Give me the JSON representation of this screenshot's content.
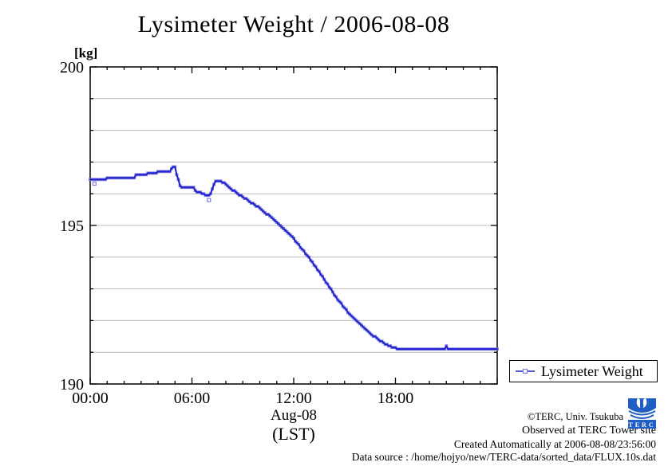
{
  "title": "Lysimeter Weight / 2006-08-08",
  "y_unit_label": "[kg]",
  "x_axis_label_line1": "Aug-08",
  "x_axis_label_line2": "(LST)",
  "legend": {
    "label": "Lysimeter Weight"
  },
  "footer": {
    "copyright": "©TERC, Univ. Tsukuba",
    "observed": "Observed at TERC Tower site",
    "created": "Created Automatically at 2006-08-08/23:56:00",
    "source": "Data source : /home/hojyo/new/TERC-data/sorted_data/FLUX.10s.dat"
  },
  "logo": {
    "text": "TERC",
    "color": "#1f5fc4"
  },
  "colors": {
    "line": "#2222cc",
    "marker": "#8080e6",
    "grid": "#b8b8b8",
    "axis": "#000000",
    "background": "#ffffff"
  },
  "chart_data": {
    "type": "line",
    "title": "Lysimeter Weight / 2006-08-08",
    "xlabel": "Aug-08 (LST)",
    "ylabel": "[kg]",
    "xlim": [
      0,
      24
    ],
    "ylim": [
      190,
      200
    ],
    "grid": "horizontal, 1 kg spacing, minor lines 191-199",
    "legend_position": "outside-right-bottom",
    "x_major_ticks": [
      {
        "hour": 0,
        "label": "00:00"
      },
      {
        "hour": 6,
        "label": "06:00"
      },
      {
        "hour": 12,
        "label": "12:00"
      },
      {
        "hour": 18,
        "label": "18:00"
      }
    ],
    "x_major_tick_hours_unlabeled": [
      24
    ],
    "x_minor_step_hours": 1,
    "y_major_ticks": [
      {
        "value": 190,
        "label": "190"
      },
      {
        "value": 195,
        "label": "195"
      },
      {
        "value": 200,
        "label": "200"
      }
    ],
    "y_minor_step": 1,
    "sample_interval_hours": 0.1,
    "quantization_kg": 0.05,
    "series": [
      {
        "name": "Lysimeter Weight",
        "units": "kg",
        "style": "linespoints-stepped",
        "points": [
          [
            0.0,
            196.45
          ],
          [
            0.95,
            196.45
          ],
          [
            1.0,
            196.5
          ],
          [
            2.65,
            196.5
          ],
          [
            2.7,
            196.58
          ],
          [
            3.35,
            196.58
          ],
          [
            3.4,
            196.65
          ],
          [
            3.9,
            196.65
          ],
          [
            3.95,
            196.72
          ],
          [
            4.7,
            196.72
          ],
          [
            4.75,
            196.8
          ],
          [
            4.9,
            196.83
          ],
          [
            5.05,
            196.83
          ],
          [
            5.1,
            196.62
          ],
          [
            5.2,
            196.45
          ],
          [
            5.3,
            196.25
          ],
          [
            5.4,
            196.22
          ],
          [
            6.1,
            196.22
          ],
          [
            6.2,
            196.08
          ],
          [
            6.5,
            196.03
          ],
          [
            6.7,
            195.98
          ],
          [
            7.05,
            195.96
          ],
          [
            7.15,
            196.08
          ],
          [
            7.3,
            196.3
          ],
          [
            7.45,
            196.42
          ],
          [
            7.65,
            196.42
          ],
          [
            7.8,
            196.37
          ],
          [
            8.0,
            196.3
          ],
          [
            8.2,
            196.2
          ],
          [
            8.4,
            196.12
          ],
          [
            8.6,
            196.03
          ],
          [
            8.8,
            195.96
          ],
          [
            9.0,
            195.9
          ],
          [
            9.25,
            195.81
          ],
          [
            9.5,
            195.72
          ],
          [
            9.75,
            195.64
          ],
          [
            10.0,
            195.55
          ],
          [
            10.25,
            195.44
          ],
          [
            10.5,
            195.33
          ],
          [
            10.75,
            195.21
          ],
          [
            11.0,
            195.09
          ],
          [
            11.25,
            194.97
          ],
          [
            11.5,
            194.86
          ],
          [
            11.75,
            194.72
          ],
          [
            12.0,
            194.58
          ],
          [
            12.25,
            194.42
          ],
          [
            12.5,
            194.26
          ],
          [
            12.75,
            194.09
          ],
          [
            13.0,
            193.91
          ],
          [
            13.25,
            193.73
          ],
          [
            13.5,
            193.54
          ],
          [
            13.75,
            193.34
          ],
          [
            14.0,
            193.13
          ],
          [
            14.25,
            192.94
          ],
          [
            14.5,
            192.74
          ],
          [
            14.75,
            192.56
          ],
          [
            15.0,
            192.39
          ],
          [
            15.25,
            192.23
          ],
          [
            15.5,
            192.08
          ],
          [
            15.75,
            191.95
          ],
          [
            16.0,
            191.83
          ],
          [
            16.25,
            191.71
          ],
          [
            16.5,
            191.6
          ],
          [
            16.75,
            191.5
          ],
          [
            17.0,
            191.4
          ],
          [
            17.25,
            191.31
          ],
          [
            17.5,
            191.24
          ],
          [
            17.75,
            191.18
          ],
          [
            18.0,
            191.13
          ],
          [
            18.25,
            191.1
          ],
          [
            18.5,
            191.08
          ],
          [
            20.9,
            191.08
          ],
          [
            21.0,
            191.2
          ],
          [
            21.1,
            191.08
          ],
          [
            24.0,
            191.08
          ]
        ]
      }
    ],
    "outlier_points": [
      [
        0.25,
        196.32
      ],
      [
        7.0,
        195.8
      ]
    ]
  }
}
